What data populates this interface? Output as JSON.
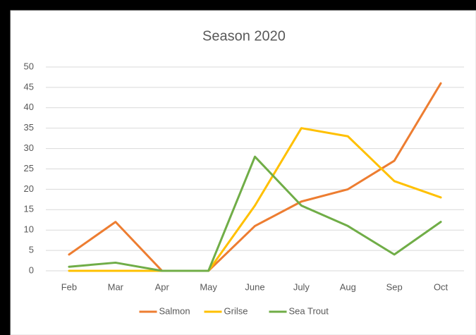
{
  "chart_data": {
    "type": "line",
    "title": "Season 2020",
    "categories": [
      "Feb",
      "Mar",
      "Apr",
      "May",
      "June",
      "July",
      "Aug",
      "Sep",
      "Oct"
    ],
    "series": [
      {
        "name": "Salmon",
        "color": "#ED7D31",
        "values": [
          4,
          12,
          0,
          0,
          11,
          17,
          20,
          27,
          46
        ]
      },
      {
        "name": "Grilse",
        "color": "#FFC000",
        "values": [
          0,
          0,
          0,
          0,
          16,
          35,
          33,
          22,
          18
        ]
      },
      {
        "name": "Sea Trout",
        "color": "#70AD47",
        "values": [
          1,
          2,
          0,
          0,
          28,
          16,
          11,
          4,
          12
        ]
      }
    ],
    "ylim": [
      0,
      50
    ],
    "yticks": [
      0,
      5,
      10,
      15,
      20,
      25,
      30,
      35,
      40,
      45,
      50
    ],
    "grid": true,
    "legend": "bottom"
  }
}
